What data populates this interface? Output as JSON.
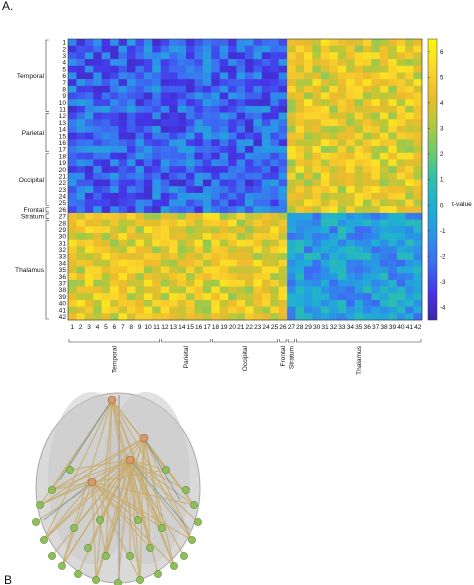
{
  "panel_labels": {
    "a": "A.",
    "b": "B"
  },
  "chart_data": {
    "type": "heatmap",
    "n": 42,
    "row_labels": [
      "1",
      "2",
      "3",
      "4",
      "5",
      "6",
      "7",
      "8",
      "9",
      "10",
      "11",
      "12",
      "13",
      "14",
      "15",
      "16",
      "17",
      "18",
      "19",
      "20",
      "21",
      "22",
      "23",
      "24",
      "25",
      "26",
      "27",
      "28",
      "29",
      "30",
      "31",
      "32",
      "33",
      "34",
      "35",
      "36",
      "37",
      "38",
      "39",
      "40",
      "41",
      "42"
    ],
    "col_labels": [
      "1",
      "2",
      "3",
      "4",
      "5",
      "6",
      "7",
      "8",
      "9",
      "10",
      "11",
      "12",
      "13",
      "14",
      "15",
      "16",
      "17",
      "18",
      "19",
      "20",
      "21",
      "22",
      "23",
      "24",
      "25",
      "26",
      "27",
      "28",
      "29",
      "30",
      "31",
      "32",
      "33",
      "34",
      "35",
      "36",
      "37",
      "38",
      "39",
      "40",
      "41",
      "42"
    ],
    "groups": [
      {
        "name": "Temporal",
        "start": 1,
        "end": 11
      },
      {
        "name": "Parietal",
        "start": 12,
        "end": 17
      },
      {
        "name": "Occipital",
        "start": 18,
        "end": 25
      },
      {
        "name": "Frontal",
        "start": 26,
        "end": 26
      },
      {
        "name": "Stratum",
        "start": 27,
        "end": 27
      },
      {
        "name": "Thalamus",
        "start": 28,
        "end": 42
      }
    ],
    "block_boundary": 26,
    "block_means": {
      "within_cortical": -2.3,
      "within_thalamus": -0.8,
      "between": 4.2
    },
    "colorbar": {
      "label": "t-value",
      "min": -4.5,
      "max": 6.5,
      "ticks": [
        "6",
        "5",
        "4",
        "3",
        "2",
        "1",
        "0",
        "-1",
        "-2",
        "-3",
        "-4"
      ],
      "tick_values": [
        6,
        5,
        4,
        3,
        2,
        1,
        0,
        -1,
        -2,
        -3,
        -4
      ],
      "colors": [
        "#3e26a8",
        "#4435e8",
        "#3d6cf2",
        "#2b93e8",
        "#1fafd3",
        "#2ec0aa",
        "#6fcb6c",
        "#b6c83a",
        "#eebb2d",
        "#fcd82a",
        "#f8fa0d"
      ]
    }
  }
}
